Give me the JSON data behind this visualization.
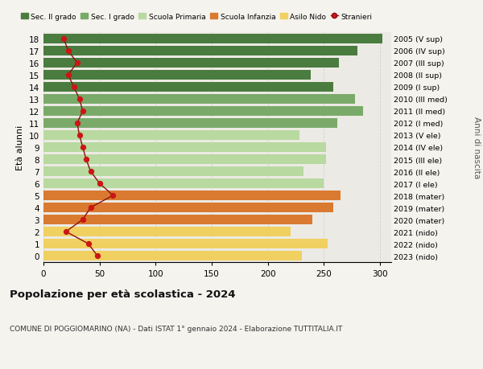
{
  "ages": [
    18,
    17,
    16,
    15,
    14,
    13,
    12,
    11,
    10,
    9,
    8,
    7,
    6,
    5,
    4,
    3,
    2,
    1,
    0
  ],
  "right_labels": [
    "2005 (V sup)",
    "2006 (IV sup)",
    "2007 (III sup)",
    "2008 (II sup)",
    "2009 (I sup)",
    "2010 (III med)",
    "2011 (II med)",
    "2012 (I med)",
    "2013 (V ele)",
    "2014 (IV ele)",
    "2015 (III ele)",
    "2016 (II ele)",
    "2017 (I ele)",
    "2018 (mater)",
    "2019 (mater)",
    "2020 (mater)",
    "2021 (nido)",
    "2022 (nido)",
    "2023 (nido)"
  ],
  "bar_values": [
    302,
    280,
    263,
    238,
    258,
    278,
    285,
    262,
    228,
    252,
    252,
    232,
    250,
    265,
    258,
    240,
    220,
    253,
    230
  ],
  "bar_colors": [
    "#4a7c3f",
    "#4a7c3f",
    "#4a7c3f",
    "#4a7c3f",
    "#4a7c3f",
    "#7aaa6a",
    "#7aaa6a",
    "#7aaa6a",
    "#b8d9a0",
    "#b8d9a0",
    "#b8d9a0",
    "#b8d9a0",
    "#b8d9a0",
    "#d97a30",
    "#d97a30",
    "#d97a30",
    "#f0d060",
    "#f0d060",
    "#f0d060"
  ],
  "stranieri_values": [
    18,
    22,
    30,
    22,
    27,
    32,
    35,
    30,
    32,
    35,
    38,
    42,
    50,
    62,
    42,
    35,
    20,
    40,
    48
  ],
  "legend_labels": [
    "Sec. II grado",
    "Sec. I grado",
    "Scuola Primaria",
    "Scuola Infanzia",
    "Asilo Nido",
    "Stranieri"
  ],
  "legend_colors": [
    "#4a7c3f",
    "#7aaa6a",
    "#b8d9a0",
    "#d97a30",
    "#f0d060",
    "#cc2222"
  ],
  "ylabel": "Età alunni",
  "ylabel_right": "Anni di nascita",
  "title": "Popolazione per età scolastica - 2024",
  "subtitle": "COMUNE DI POGGIOMARINO (NA) - Dati ISTAT 1° gennaio 2024 - Elaborazione TUTTITALIA.IT",
  "xlim": [
    0,
    310
  ],
  "background_color": "#f5f3ee",
  "bar_background": "#eceae4",
  "grid_color": "#cccccc"
}
